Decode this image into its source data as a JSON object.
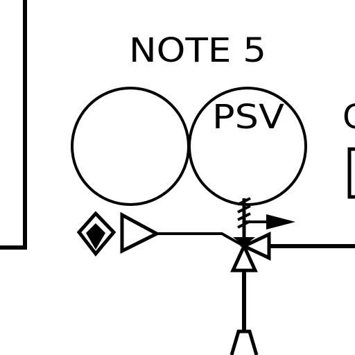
{
  "diagram": {
    "note_label": "NOTE 5",
    "instrument_tag": "PSV",
    "partial_label_right": "C"
  },
  "colors": {
    "line": "#000000",
    "background": "#ffffff"
  }
}
